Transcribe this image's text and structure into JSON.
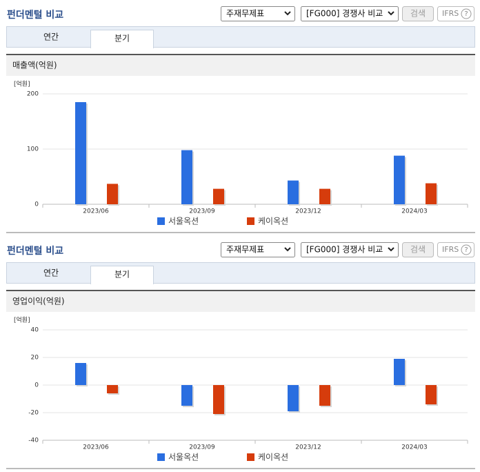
{
  "panels": [
    {
      "title": "펀더멘털 비교",
      "selects": [
        "주재무제표",
        "[FG000] 경쟁사 비교"
      ],
      "search": "검색",
      "ifrs": "IFRS",
      "help": "?",
      "tabs": [
        "연간",
        "분기"
      ]
    },
    {
      "title": "펀더멘털 비교",
      "selects": [
        "주재무제표",
        "[FG000] 경쟁사 비교"
      ],
      "search": "검색",
      "ifrs": "IFRS",
      "help": "?",
      "tabs": [
        "연간",
        "분기"
      ]
    }
  ],
  "chart_data": [
    {
      "type": "bar",
      "title": "매출액(억원)",
      "unit_label": "[억원]",
      "categories": [
        "2023/06",
        "2023/09",
        "2023/12",
        "2024/03"
      ],
      "series": [
        {
          "name": "서울옥션",
          "color": "#2a6ee0",
          "values": [
            185,
            98,
            43,
            88
          ]
        },
        {
          "name": "케이옥션",
          "color": "#d63c0c",
          "values": [
            37,
            28,
            28,
            38
          ]
        }
      ],
      "ylim": [
        0,
        200
      ],
      "yticks": [
        0,
        100,
        200
      ],
      "grid": true
    },
    {
      "type": "bar",
      "title": "영업이익(억원)",
      "unit_label": "[억원]",
      "categories": [
        "2023/06",
        "2023/09",
        "2023/12",
        "2024/03"
      ],
      "series": [
        {
          "name": "서울옥션",
          "color": "#2a6ee0",
          "values": [
            16,
            -15,
            -19,
            19
          ]
        },
        {
          "name": "케이옥션",
          "color": "#d63c0c",
          "values": [
            -6,
            -21,
            -15,
            -14
          ]
        }
      ],
      "ylim": [
        -40,
        40
      ],
      "yticks": [
        -40,
        -20,
        0,
        20,
        40
      ],
      "grid": true
    }
  ]
}
